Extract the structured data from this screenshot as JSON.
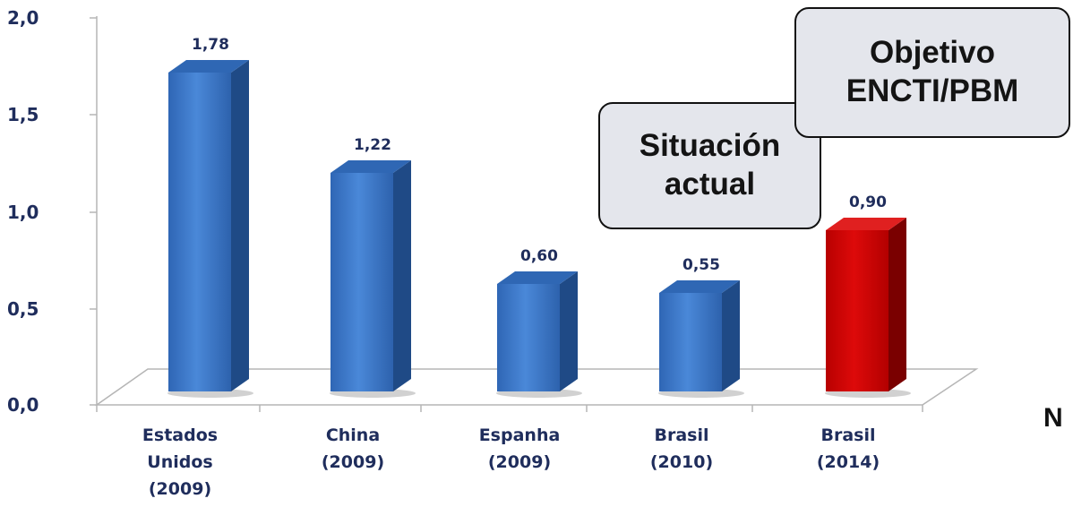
{
  "chart_data": {
    "type": "bar",
    "categories": [
      [
        "Estados",
        "Unidos",
        "(2009)"
      ],
      [
        "China",
        "(2009)"
      ],
      [
        "Espanha",
        "(2009)"
      ],
      [
        "Brasil",
        "(2010)"
      ],
      [
        "Brasil",
        "(2014)"
      ]
    ],
    "values": [
      1.78,
      1.22,
      0.6,
      0.55,
      0.9
    ],
    "data_labels": [
      "1,78",
      "1,22",
      "0,60",
      "0,55",
      "0,90"
    ],
    "bar_colors": [
      "#3a78cc",
      "#3a78cc",
      "#3a78cc",
      "#3a78cc",
      "#cc0000"
    ],
    "ylim": [
      0,
      2.0
    ],
    "y_ticks": [
      0,
      0.5,
      1.0,
      1.5,
      2.0
    ],
    "y_tick_labels": [
      "0,0",
      "0,5",
      "1,0",
      "1,5",
      "2,0"
    ],
    "grid": false
  },
  "callouts": {
    "actual": [
      "Situación",
      "actual"
    ],
    "goal": [
      "Objetivo",
      "ENCTI/PBM"
    ]
  },
  "edge_text": "N"
}
